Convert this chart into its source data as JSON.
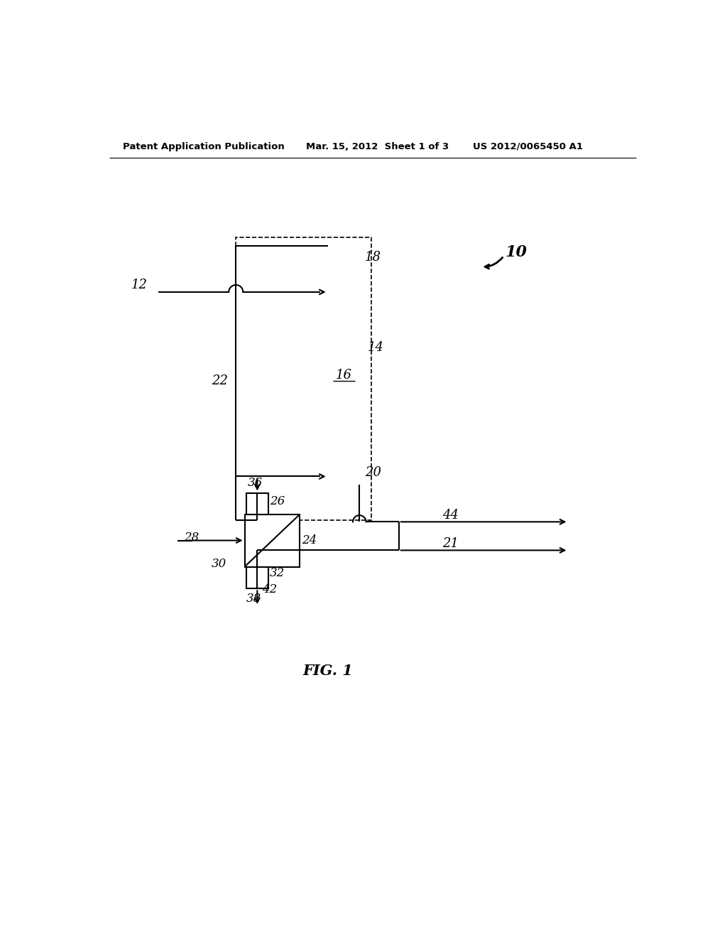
{
  "bg_color": "#ffffff",
  "header_left": "Patent Application Publication",
  "header_mid": "Mar. 15, 2012  Sheet 1 of 3",
  "header_right": "US 2012/0065450 A1",
  "fig_label": "FIG. 1"
}
